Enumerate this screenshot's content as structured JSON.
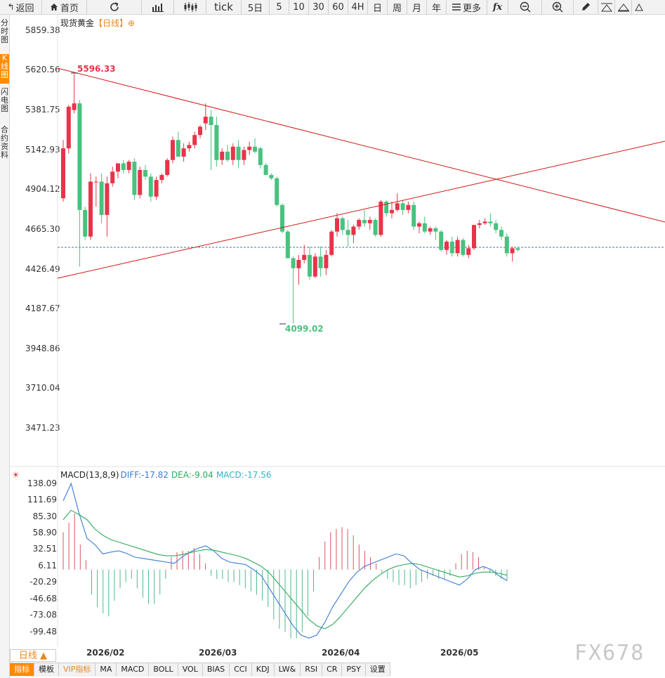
{
  "toolbar": {
    "back": "返回",
    "home": "首页",
    "tick": "tick",
    "periods": [
      "5日",
      "5",
      "10",
      "30",
      "60",
      "4H",
      "日",
      "周",
      "月",
      "年"
    ],
    "more": "更多",
    "fx": "fx"
  },
  "sidetabs": [
    {
      "label": "分时图"
    },
    {
      "label": "K线图"
    },
    {
      "label": "闪电图"
    },
    {
      "label": "合约资料"
    }
  ],
  "chart": {
    "symbol": "现货黄金",
    "period": "【日线】",
    "add_symbol": "⊕",
    "y_labels": [
      "5859.38",
      "5620.56",
      "5381.75",
      "5142.93",
      "4904.12",
      "4665.30",
      "4426.49",
      "4187.67",
      "3948.86",
      "3710.04",
      "3471.23"
    ],
    "high_label": "5596.33",
    "low_label": "4099.02",
    "up_color": "#e8344a",
    "down_color": "#48c27e",
    "trendline_color": "#d01818",
    "last_price_line_color": "#4a6fb5"
  },
  "macd": {
    "title": "MACD(13,8,9)",
    "diff": "DIFF:-17.82",
    "dea": "DEA:-9.04",
    "macd": "MACD:-17.56",
    "y_labels": [
      "138.09",
      "111.69",
      "85.30",
      "58.90",
      "32.51",
      "6.11",
      "-20.29",
      "-46.68",
      "-73.08",
      "-99.48"
    ],
    "diff_color": "#3a7bd5",
    "dea_color": "#2eaa5c"
  },
  "x_labels": [
    "2026/02",
    "2026/03",
    "2026/04",
    "2026/05"
  ],
  "period_button": "日线 ▲",
  "bottom_tabs": [
    "指标",
    "模板",
    "VIP指标",
    "MA",
    "MACD",
    "BOLL",
    "VOL",
    "BIAS",
    "CCI",
    "KDJ",
    "LW&",
    "RSI",
    "CR",
    "PSY",
    "设置"
  ],
  "watermark": "FX678",
  "chart_data": {
    "type": "candlestick",
    "ylim": [
      3471.23,
      5859.38
    ],
    "candles": [
      {
        "o": 4850,
        "h": 5200,
        "l": 4830,
        "c": 5150
      },
      {
        "o": 5150,
        "h": 5410,
        "l": 5120,
        "c": 5400
      },
      {
        "o": 5380,
        "h": 5596,
        "l": 5360,
        "c": 5420
      },
      {
        "o": 5420,
        "h": 5440,
        "l": 4440,
        "c": 4780
      },
      {
        "o": 4780,
        "h": 4800,
        "l": 4600,
        "c": 4620
      },
      {
        "o": 4620,
        "h": 5000,
        "l": 4600,
        "c": 4950
      },
      {
        "o": 4950,
        "h": 4980,
        "l": 4800,
        "c": 4950
      },
      {
        "o": 4950,
        "h": 5000,
        "l": 4700,
        "c": 4750
      },
      {
        "o": 4750,
        "h": 4980,
        "l": 4620,
        "c": 4940
      },
      {
        "o": 4940,
        "h": 5040,
        "l": 4920,
        "c": 5010
      },
      {
        "o": 5010,
        "h": 5060,
        "l": 4970,
        "c": 5060
      },
      {
        "o": 5060,
        "h": 5080,
        "l": 5000,
        "c": 5020
      },
      {
        "o": 5020,
        "h": 5080,
        "l": 5000,
        "c": 5070
      },
      {
        "o": 5070,
        "h": 5090,
        "l": 4840,
        "c": 4870
      },
      {
        "o": 4870,
        "h": 5040,
        "l": 4850,
        "c": 5020
      },
      {
        "o": 5020,
        "h": 5050,
        "l": 4960,
        "c": 4980
      },
      {
        "o": 4980,
        "h": 5000,
        "l": 4830,
        "c": 4860
      },
      {
        "o": 4860,
        "h": 4980,
        "l": 4840,
        "c": 4960
      },
      {
        "o": 4960,
        "h": 5000,
        "l": 4940,
        "c": 4990
      },
      {
        "o": 4990,
        "h": 5090,
        "l": 4980,
        "c": 5080
      },
      {
        "o": 5080,
        "h": 5220,
        "l": 5060,
        "c": 5200
      },
      {
        "o": 5200,
        "h": 5250,
        "l": 5100,
        "c": 5100
      },
      {
        "o": 5100,
        "h": 5180,
        "l": 5070,
        "c": 5150
      },
      {
        "o": 5150,
        "h": 5190,
        "l": 5130,
        "c": 5170
      },
      {
        "o": 5170,
        "h": 5250,
        "l": 5150,
        "c": 5230
      },
      {
        "o": 5230,
        "h": 5290,
        "l": 5210,
        "c": 5280
      },
      {
        "o": 5300,
        "h": 5420,
        "l": 5260,
        "c": 5340
      },
      {
        "o": 5340,
        "h": 5380,
        "l": 5020,
        "c": 5290
      },
      {
        "o": 5290,
        "h": 5340,
        "l": 5040,
        "c": 5080
      },
      {
        "o": 5080,
        "h": 5150,
        "l": 5050,
        "c": 5130
      },
      {
        "o": 5130,
        "h": 5170,
        "l": 5070,
        "c": 5080
      },
      {
        "o": 5080,
        "h": 5180,
        "l": 5050,
        "c": 5160
      },
      {
        "o": 5160,
        "h": 5200,
        "l": 5030,
        "c": 5080
      },
      {
        "o": 5080,
        "h": 5160,
        "l": 5050,
        "c": 5140
      },
      {
        "o": 5140,
        "h": 5190,
        "l": 5110,
        "c": 5160
      },
      {
        "o": 5160,
        "h": 5210,
        "l": 5120,
        "c": 5130
      },
      {
        "o": 5150,
        "h": 5160,
        "l": 5030,
        "c": 5050
      },
      {
        "o": 5050,
        "h": 5060,
        "l": 4990,
        "c": 4990
      },
      {
        "o": 4990,
        "h": 5000,
        "l": 4960,
        "c": 4970
      },
      {
        "o": 4970,
        "h": 4980,
        "l": 4800,
        "c": 4810
      },
      {
        "o": 4810,
        "h": 4820,
        "l": 4640,
        "c": 4650
      },
      {
        "o": 4650,
        "h": 4660,
        "l": 4490,
        "c": 4490
      },
      {
        "o": 4490,
        "h": 4500,
        "l": 4099,
        "c": 4430
      },
      {
        "o": 4430,
        "h": 4510,
        "l": 4330,
        "c": 4480
      },
      {
        "o": 4480,
        "h": 4570,
        "l": 4460,
        "c": 4510
      },
      {
        "o": 4510,
        "h": 4560,
        "l": 4360,
        "c": 4380
      },
      {
        "o": 4380,
        "h": 4520,
        "l": 4370,
        "c": 4500
      },
      {
        "o": 4500,
        "h": 4560,
        "l": 4380,
        "c": 4430
      },
      {
        "o": 4430,
        "h": 4540,
        "l": 4390,
        "c": 4510
      },
      {
        "o": 4510,
        "h": 4660,
        "l": 4500,
        "c": 4650
      },
      {
        "o": 4650,
        "h": 4760,
        "l": 4620,
        "c": 4730
      },
      {
        "o": 4730,
        "h": 4740,
        "l": 4630,
        "c": 4660
      },
      {
        "o": 4660,
        "h": 4720,
        "l": 4560,
        "c": 4630
      },
      {
        "o": 4630,
        "h": 4690,
        "l": 4580,
        "c": 4680
      },
      {
        "o": 4680,
        "h": 4730,
        "l": 4660,
        "c": 4720
      },
      {
        "o": 4720,
        "h": 4780,
        "l": 4680,
        "c": 4700
      },
      {
        "o": 4700,
        "h": 4740,
        "l": 4660,
        "c": 4720
      },
      {
        "o": 4720,
        "h": 4730,
        "l": 4620,
        "c": 4630
      },
      {
        "o": 4630,
        "h": 4840,
        "l": 4620,
        "c": 4830
      },
      {
        "o": 4830,
        "h": 4840,
        "l": 4740,
        "c": 4760
      },
      {
        "o": 4760,
        "h": 4830,
        "l": 4730,
        "c": 4780
      },
      {
        "o": 4780,
        "h": 4880,
        "l": 4770,
        "c": 4820
      },
      {
        "o": 4820,
        "h": 4840,
        "l": 4750,
        "c": 4780
      },
      {
        "o": 4780,
        "h": 4830,
        "l": 4760,
        "c": 4810
      },
      {
        "o": 4810,
        "h": 4830,
        "l": 4660,
        "c": 4680
      },
      {
        "o": 4680,
        "h": 4710,
        "l": 4640,
        "c": 4700
      },
      {
        "o": 4700,
        "h": 4740,
        "l": 4640,
        "c": 4650
      },
      {
        "o": 4650,
        "h": 4680,
        "l": 4630,
        "c": 4670
      },
      {
        "o": 4670,
        "h": 4680,
        "l": 4600,
        "c": 4650
      },
      {
        "o": 4650,
        "h": 4660,
        "l": 4530,
        "c": 4540
      },
      {
        "o": 4540,
        "h": 4600,
        "l": 4510,
        "c": 4590
      },
      {
        "o": 4590,
        "h": 4620,
        "l": 4500,
        "c": 4520
      },
      {
        "o": 4520,
        "h": 4620,
        "l": 4500,
        "c": 4600
      },
      {
        "o": 4600,
        "h": 4610,
        "l": 4500,
        "c": 4510
      },
      {
        "o": 4510,
        "h": 4570,
        "l": 4490,
        "c": 4550
      },
      {
        "o": 4550,
        "h": 4690,
        "l": 4540,
        "c": 4690
      },
      {
        "o": 4690,
        "h": 4720,
        "l": 4670,
        "c": 4700
      },
      {
        "o": 4700,
        "h": 4730,
        "l": 4690,
        "c": 4710
      },
      {
        "o": 4710,
        "h": 4760,
        "l": 4680,
        "c": 4700
      },
      {
        "o": 4700,
        "h": 4720,
        "l": 4640,
        "c": 4660
      },
      {
        "o": 4660,
        "h": 4680,
        "l": 4600,
        "c": 4620
      },
      {
        "o": 4620,
        "h": 4640,
        "l": 4500,
        "c": 4520
      },
      {
        "o": 4520,
        "h": 4560,
        "l": 4470,
        "c": 4550
      },
      {
        "o": 4550,
        "h": 4560,
        "l": 4530,
        "c": 4540
      }
    ],
    "macd_hist": [
      60,
      75,
      90,
      40,
      15,
      -40,
      -60,
      -70,
      -75,
      -50,
      -30,
      -20,
      -15,
      -30,
      -45,
      -55,
      -55,
      -40,
      -15,
      20,
      28,
      30,
      30,
      35,
      25,
      10,
      -10,
      -15,
      -15,
      -20,
      -20,
      -25,
      -30,
      -35,
      -40,
      -50,
      -60,
      -80,
      -95,
      -100,
      -110,
      -110,
      -100,
      -75,
      -35,
      20,
      45,
      60,
      65,
      68,
      65,
      55,
      40,
      30,
      20,
      10,
      -5,
      -15,
      -20,
      -25,
      -25,
      -30,
      -25,
      -20,
      -15,
      -10,
      -15,
      -15,
      -10,
      10,
      25,
      30,
      28,
      20,
      5,
      -5,
      -10,
      -15,
      -17.56
    ],
    "diff": [
      110,
      138,
      90,
      50,
      40,
      25,
      28,
      30,
      26,
      20,
      18,
      16,
      14,
      12,
      10,
      20,
      28,
      34,
      38,
      30,
      18,
      12,
      10,
      8,
      0,
      -10,
      -30,
      -50,
      -70,
      -90,
      -105,
      -110,
      -105,
      -85,
      -60,
      -40,
      -20,
      -5,
      5,
      10,
      15,
      20,
      25,
      22,
      10,
      0,
      -5,
      -10,
      -15,
      -20,
      -25,
      -15,
      0,
      5,
      0,
      -10,
      -17.82
    ],
    "dea": [
      80,
      95,
      88,
      80,
      65,
      55,
      48,
      44,
      40,
      36,
      32,
      28,
      24,
      22,
      22,
      24,
      27,
      30,
      32,
      31,
      28,
      25,
      22,
      18,
      12,
      5,
      -5,
      -20,
      -35,
      -50,
      -65,
      -80,
      -90,
      -95,
      -88,
      -75,
      -60,
      -45,
      -30,
      -18,
      -8,
      0,
      5,
      8,
      10,
      8,
      4,
      0,
      -4,
      -8,
      -12,
      -10,
      -6,
      -4,
      -4,
      -6,
      -9.04
    ]
  }
}
